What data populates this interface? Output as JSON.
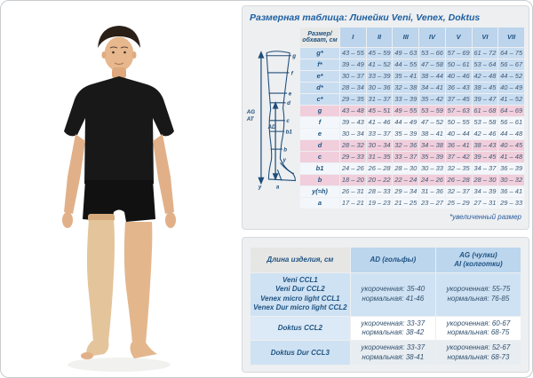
{
  "title": "Размерная таблица: Линейки Veni, Venex, Doktus",
  "footnote": "*увеличенный размер",
  "colors": {
    "accent_blue": "#1e5fa0",
    "cell_blue": "#c9ddf1",
    "cell_pink": "#f1cedb",
    "cell_light": "#f3f7fb",
    "header_grey": "#e8e8e6",
    "diagram_stroke": "#1f4e79",
    "stocking_beige": "#e4c49a",
    "skin": "#e4b68c",
    "shirt_black": "#181818"
  },
  "photo": {
    "alt_description": "man in black t-shirt and shorts wearing beige thigh-high compression stocking on one leg"
  },
  "diagram": {
    "level_labels": [
      "g",
      "f",
      "e",
      "d",
      "c",
      "b1",
      "b",
      "y",
      "a"
    ],
    "left_arrow_labels": [
      "AG",
      "AT"
    ],
    "inner_arrow_label": "AD",
    "bottom_labels": [
      "y",
      "a"
    ]
  },
  "size_table": {
    "corner_header": "Размер/\nобхват, см",
    "columns": [
      "I",
      "II",
      "III",
      "IV",
      "V",
      "VI",
      "VII"
    ],
    "rows": [
      {
        "label": "g*",
        "tint": "blue",
        "values": [
          "43 – 55",
          "45 – 59",
          "49 – 63",
          "53 – 66",
          "57 – 69",
          "61 – 72",
          "64 – 75"
        ]
      },
      {
        "label": "f*",
        "tint": "blue",
        "values": [
          "39 – 49",
          "41 – 52",
          "44 – 55",
          "47 – 58",
          "50 – 61",
          "53 – 64",
          "56 – 67"
        ]
      },
      {
        "label": "e*",
        "tint": "blue",
        "values": [
          "30 – 37",
          "33 – 39",
          "35 – 41",
          "38 – 44",
          "40 – 46",
          "42 – 48",
          "44 – 52"
        ]
      },
      {
        "label": "d*",
        "tint": "blue",
        "values": [
          "28 – 34",
          "30 – 36",
          "32 – 38",
          "34 – 41",
          "36 – 43",
          "38 – 45",
          "40 – 49"
        ]
      },
      {
        "label": "c*",
        "tint": "blue",
        "values": [
          "29 – 35",
          "31 – 37",
          "33 – 39",
          "35 – 42",
          "37 – 45",
          "39 – 47",
          "41 – 52"
        ]
      },
      {
        "label": "g",
        "tint": "pink",
        "values": [
          "43 – 48",
          "45 – 51",
          "49 – 55",
          "53 – 59",
          "57 – 63",
          "61 – 68",
          "64 – 69"
        ]
      },
      {
        "label": "f",
        "tint": "white",
        "values": [
          "39 – 43",
          "41 – 46",
          "44 – 49",
          "47 – 52",
          "50 – 55",
          "53 – 58",
          "56 – 61"
        ]
      },
      {
        "label": "e",
        "tint": "white",
        "values": [
          "30 – 34",
          "33 – 37",
          "35 – 39",
          "38 – 41",
          "40 – 44",
          "42 – 46",
          "44 – 48"
        ]
      },
      {
        "label": "d",
        "tint": "pink",
        "values": [
          "28 – 32",
          "30 – 34",
          "32 – 36",
          "34 – 38",
          "36 – 41",
          "38 – 43",
          "40 – 45"
        ]
      },
      {
        "label": "c",
        "tint": "pink",
        "values": [
          "29 – 33",
          "31 – 35",
          "33 – 37",
          "35 – 39",
          "37 – 42",
          "39 – 45",
          "41 – 48"
        ]
      },
      {
        "label": "b1",
        "tint": "white",
        "values": [
          "24 – 26",
          "26 – 28",
          "28 – 30",
          "30 – 33",
          "32 – 35",
          "34 – 37",
          "36 – 39"
        ]
      },
      {
        "label": "b",
        "tint": "pink",
        "values": [
          "18 – 20",
          "20 – 22",
          "22 – 24",
          "24 – 26",
          "26 – 28",
          "28 – 30",
          "30 – 32"
        ]
      },
      {
        "label": "y(≈h)",
        "tint": "white",
        "values": [
          "26 – 31",
          "28 – 33",
          "29 – 34",
          "31 – 36",
          "32 – 37",
          "34 – 39",
          "36 – 41"
        ]
      },
      {
        "label": "a",
        "tint": "white",
        "values": [
          "17 – 21",
          "19 – 23",
          "21 – 25",
          "23 – 27",
          "25 – 29",
          "27 – 31",
          "29 – 33"
        ]
      }
    ]
  },
  "length_table": {
    "headers": [
      "Длина изделия, см",
      "AD (гольфы)",
      "AG (чулки)\nAI (колготки)"
    ],
    "rows": [
      {
        "models": "Veni CCL1\nVeni Dur CCL2\nVenex micro light CCL1\nVenex Dur micro light CCL2",
        "ad": [
          "укороченная: 35-40",
          "нормальная: 41-46"
        ],
        "ag": [
          "укороченная: 55-75",
          "нормальная: 76-85"
        ],
        "label_bg": "bg-b1",
        "data_bg": "bg-b1"
      },
      {
        "models": "Doktus CCL2",
        "ad": [
          "укороченная: 33-37",
          "нормальная: 38-42"
        ],
        "ag": [
          "укороченная: 60-67",
          "нормальная: 68-75"
        ],
        "label_bg": "bg-b2",
        "data_bg": "bg-wh"
      },
      {
        "models": "Doktus Dur CCL3",
        "ad": [
          "укороченная: 33-37",
          "нормальная: 38-41"
        ],
        "ag": [
          "укороченная: 52-67",
          "нормальная: 68-73"
        ],
        "label_bg": "bg-b1",
        "data_bg": "bg-gr"
      }
    ]
  }
}
